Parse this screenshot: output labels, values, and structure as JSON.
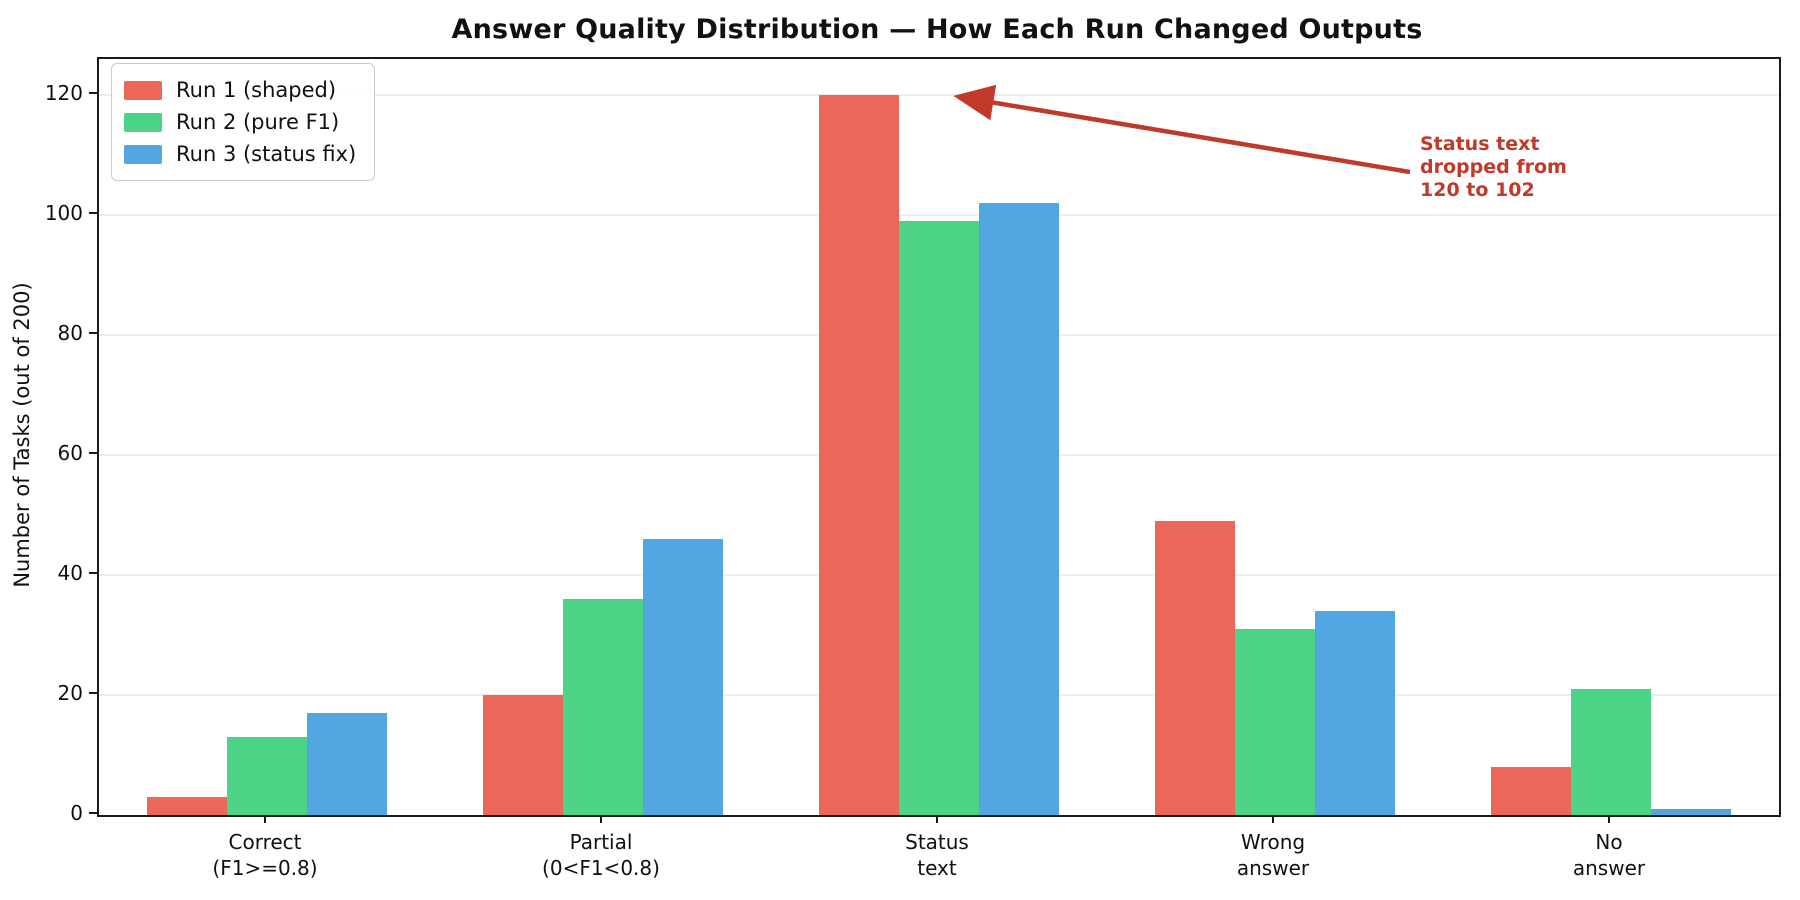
{
  "chart_data": {
    "type": "bar",
    "title": "Answer Quality Distribution — How Each Run Changed Outputs",
    "ylabel": "Number of Tasks (out of 200)",
    "xlabel": "",
    "categories": [
      "Correct (F1>=0.8)",
      "Partial (0<F1<0.8)",
      "Status text",
      "Wrong answer",
      "No answer"
    ],
    "category_lines": [
      [
        "Correct",
        "(F1>=0.8)"
      ],
      [
        "Partial",
        "(0<F1<0.8)"
      ],
      [
        "Status",
        "text"
      ],
      [
        "Wrong",
        "answer"
      ],
      [
        "No",
        "answer"
      ]
    ],
    "series": [
      {
        "name": "Run 1 (shaped)",
        "color": "#ea6759",
        "values": [
          3,
          20,
          120,
          49,
          8
        ]
      },
      {
        "name": "Run 2 (pure F1)",
        "color": "#4dd386",
        "values": [
          13,
          36,
          99,
          31,
          21
        ]
      },
      {
        "name": "Run 3 (status fix)",
        "color": "#52a7e0",
        "values": [
          17,
          46,
          102,
          34,
          1
        ]
      }
    ],
    "yticks": [
      0,
      20,
      40,
      60,
      80,
      100,
      120
    ],
    "ylim": [
      0,
      126
    ],
    "grid": "horizontal",
    "grid_color": "#ededed",
    "legend_position": "upper-left",
    "axis_color": "#1a1a1a",
    "annotation": {
      "text_lines": [
        "Status text",
        "dropped from",
        "120 to 102"
      ],
      "color": "#c0392b",
      "points_to": "top of Run 1 bar in Status text group (value 120)"
    }
  }
}
